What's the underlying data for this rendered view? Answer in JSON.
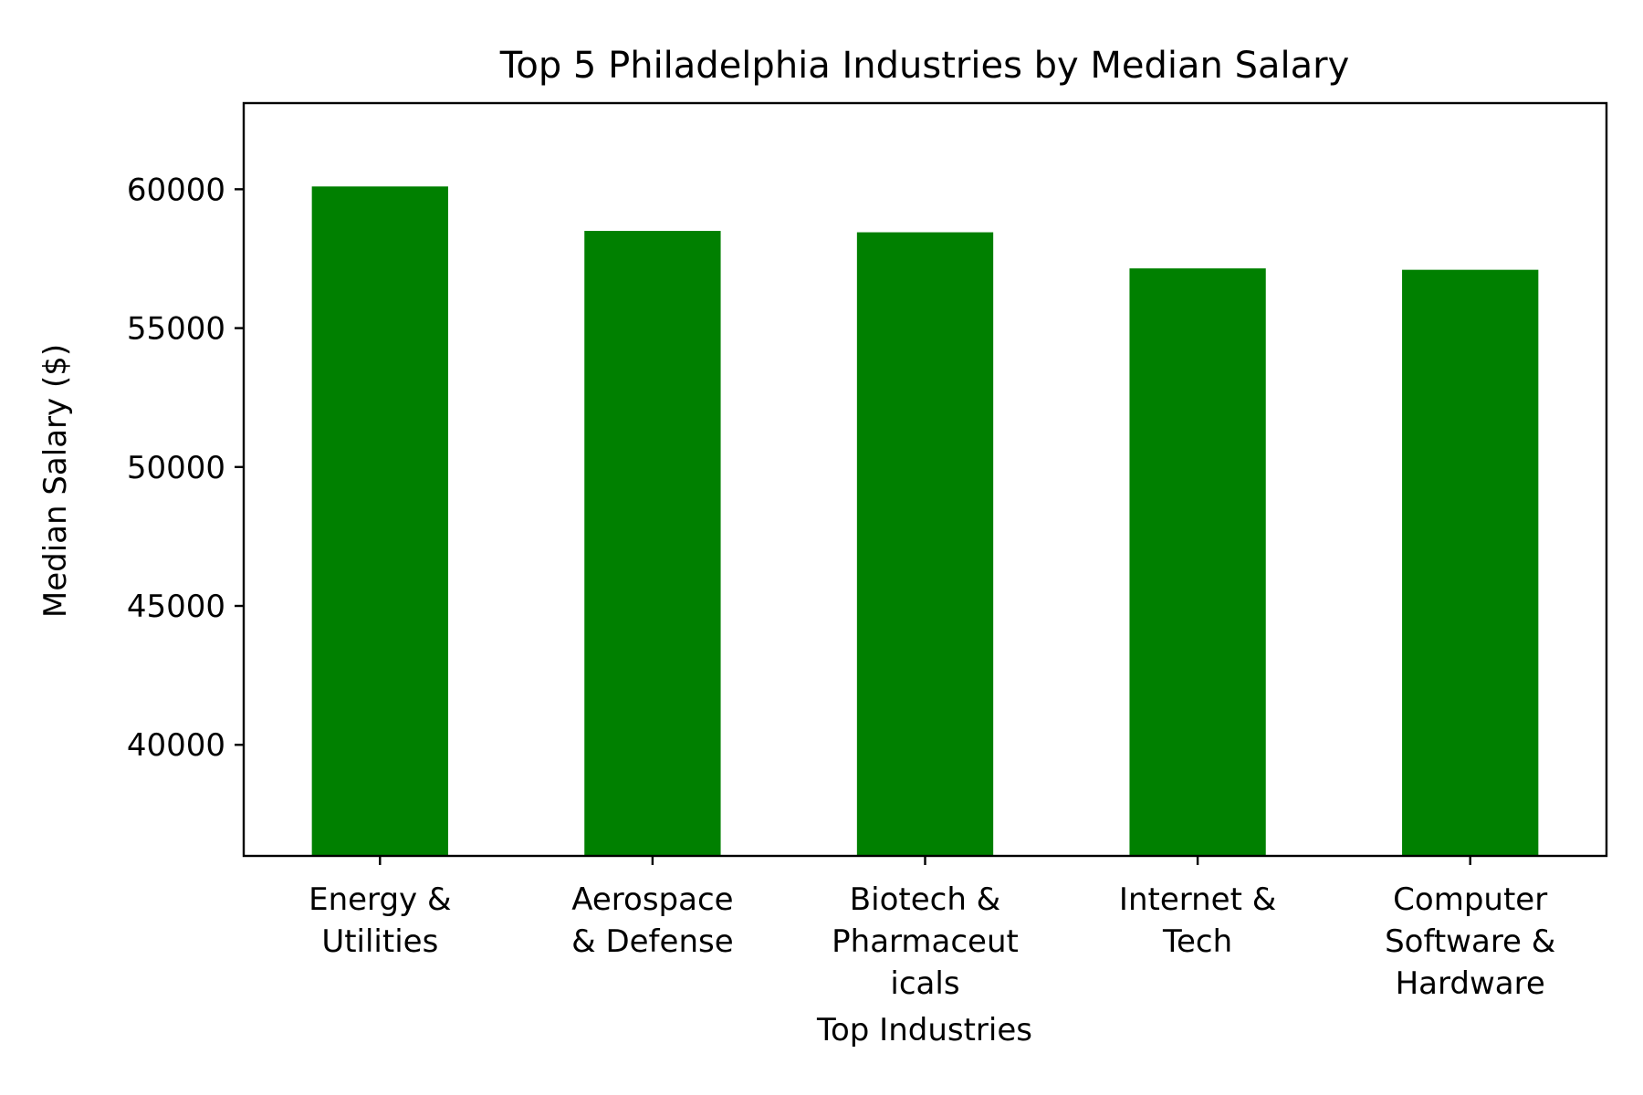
{
  "chart_data": {
    "type": "bar",
    "title": "Top 5 Philadelphia Industries by Median Salary",
    "xlabel": "Top Industries",
    "ylabel": "Median Salary ($)",
    "categories": [
      "Energy & Utilities",
      "Aerospace & Defense",
      "Biotech & Pharmaceuticals",
      "Internet & Tech",
      "Computer Software & Hardware"
    ],
    "category_label_lines": [
      [
        "Energy &",
        "Utilities"
      ],
      [
        "Aerospace",
        "& Defense"
      ],
      [
        "Biotech &",
        "Pharmaceut",
        "icals"
      ],
      [
        "Internet &",
        "Tech"
      ],
      [
        "Computer",
        "Software &",
        "Hardware"
      ]
    ],
    "values": [
      60100,
      58500,
      58450,
      57150,
      57100
    ],
    "ylim": [
      36000,
      63100
    ],
    "yticks": [
      40000,
      45000,
      50000,
      55000,
      60000
    ],
    "bar_color": "#008000",
    "grid": false,
    "legend": "none"
  }
}
